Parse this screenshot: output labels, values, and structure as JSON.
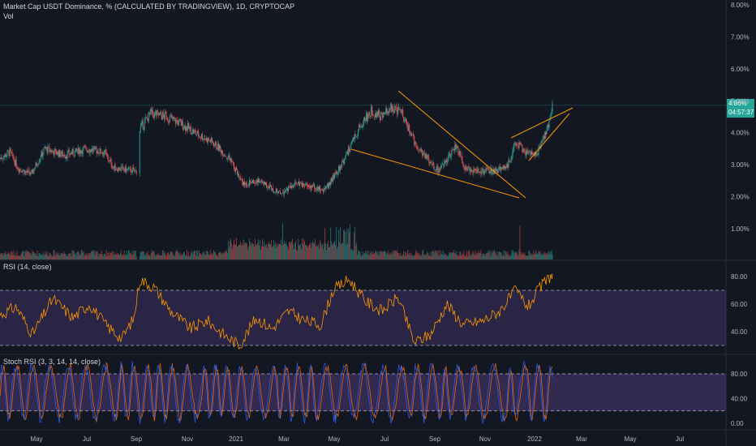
{
  "header": {
    "title": "Market Cap USDT Dominance, % (CALCULATED BY TRADINGVIEW), 1D, CRYPTOCAP",
    "vol_label": "Vol"
  },
  "rsi_pane": {
    "label": "RSI (14, close)"
  },
  "stoch_pane": {
    "label": "Stoch RSI (3, 3, 14, 14, close)"
  },
  "price_badge": {
    "value": "4.86%",
    "countdown": "04:57:37",
    "color": "#26a69a"
  },
  "colors": {
    "background": "#131722",
    "up": "#26a69a",
    "down": "#ef5350",
    "rsi_line": "#ff9800",
    "rsi_band": "#7e57c2",
    "stoch_k": "#2962ff",
    "stoch_d": "#ff6d00",
    "trendline": "#ff9800",
    "grid": "#1e222d",
    "axis_text": "#b2b5be"
  },
  "chart_data": {
    "type": "candlestick",
    "symbol": "USDT.D",
    "price_axis": {
      "ticks": [
        "8.00%",
        "7.00%",
        "6.00%",
        "5.00%",
        "4.00%",
        "3.00%",
        "2.00%",
        "1.00%"
      ],
      "range": [
        0,
        8
      ]
    },
    "rsi_axis": {
      "ticks": [
        "80.00",
        "60.00",
        "40.00"
      ],
      "range": [
        25,
        85
      ],
      "bands": [
        70,
        30
      ]
    },
    "stoch_axis": {
      "ticks": [
        "80.00",
        "40.00",
        "0.00"
      ],
      "range": [
        -5,
        105
      ],
      "bands": [
        80,
        20
      ]
    },
    "time_axis": {
      "ticks": [
        "May",
        "Jul",
        "Sep",
        "Nov",
        "2021",
        "Mar",
        "May",
        "Jul",
        "Sep",
        "Nov",
        "2022",
        "Mar",
        "May",
        "Jul"
      ]
    },
    "close_series": [
      {
        "t": 0,
        "v": 3.2
      },
      {
        "t": 12,
        "v": 3.4
      },
      {
        "t": 22,
        "v": 2.9
      },
      {
        "t": 38,
        "v": 2.7
      },
      {
        "t": 55,
        "v": 3.5
      },
      {
        "t": 80,
        "v": 3.3
      },
      {
        "t": 105,
        "v": 3.5
      },
      {
        "t": 128,
        "v": 3.4
      },
      {
        "t": 140,
        "v": 2.9
      },
      {
        "t": 168,
        "v": 2.8
      },
      {
        "t": 172,
        "v": 4.1
      },
      {
        "t": 185,
        "v": 4.6
      },
      {
        "t": 205,
        "v": 4.5
      },
      {
        "t": 222,
        "v": 4.3
      },
      {
        "t": 240,
        "v": 4.0
      },
      {
        "t": 262,
        "v": 3.7
      },
      {
        "t": 282,
        "v": 3.2
      },
      {
        "t": 300,
        "v": 2.4
      },
      {
        "t": 320,
        "v": 2.5
      },
      {
        "t": 345,
        "v": 2.1
      },
      {
        "t": 365,
        "v": 2.4
      },
      {
        "t": 385,
        "v": 2.3
      },
      {
        "t": 400,
        "v": 2.2
      },
      {
        "t": 418,
        "v": 2.9
      },
      {
        "t": 432,
        "v": 3.6
      },
      {
        "t": 445,
        "v": 4.3
      },
      {
        "t": 458,
        "v": 4.7
      },
      {
        "t": 470,
        "v": 4.5
      },
      {
        "t": 483,
        "v": 4.8
      },
      {
        "t": 495,
        "v": 4.6
      },
      {
        "t": 505,
        "v": 4.0
      },
      {
        "t": 515,
        "v": 3.5
      },
      {
        "t": 530,
        "v": 3.1
      },
      {
        "t": 540,
        "v": 2.8
      },
      {
        "t": 553,
        "v": 3.3
      },
      {
        "t": 562,
        "v": 3.6
      },
      {
        "t": 572,
        "v": 2.9
      },
      {
        "t": 590,
        "v": 2.8
      },
      {
        "t": 610,
        "v": 2.8
      },
      {
        "t": 625,
        "v": 3.0
      },
      {
        "t": 635,
        "v": 3.7
      },
      {
        "t": 650,
        "v": 3.3
      },
      {
        "t": 662,
        "v": 3.4
      },
      {
        "t": 672,
        "v": 4.0
      },
      {
        "t": 680,
        "v": 4.86
      }
    ],
    "rsi_series": [
      {
        "t": 0,
        "v": 52
      },
      {
        "t": 20,
        "v": 58
      },
      {
        "t": 40,
        "v": 38
      },
      {
        "t": 65,
        "v": 64
      },
      {
        "t": 90,
        "v": 50
      },
      {
        "t": 110,
        "v": 60
      },
      {
        "t": 130,
        "v": 45
      },
      {
        "t": 150,
        "v": 35
      },
      {
        "t": 165,
        "v": 50
      },
      {
        "t": 172,
        "v": 78
      },
      {
        "t": 190,
        "v": 72
      },
      {
        "t": 210,
        "v": 55
      },
      {
        "t": 235,
        "v": 42
      },
      {
        "t": 255,
        "v": 48
      },
      {
        "t": 275,
        "v": 38
      },
      {
        "t": 295,
        "v": 30
      },
      {
        "t": 315,
        "v": 50
      },
      {
        "t": 335,
        "v": 42
      },
      {
        "t": 355,
        "v": 55
      },
      {
        "t": 375,
        "v": 48
      },
      {
        "t": 395,
        "v": 45
      },
      {
        "t": 410,
        "v": 70
      },
      {
        "t": 430,
        "v": 78
      },
      {
        "t": 450,
        "v": 62
      },
      {
        "t": 470,
        "v": 55
      },
      {
        "t": 490,
        "v": 65
      },
      {
        "t": 510,
        "v": 32
      },
      {
        "t": 530,
        "v": 38
      },
      {
        "t": 550,
        "v": 60
      },
      {
        "t": 570,
        "v": 45
      },
      {
        "t": 595,
        "v": 48
      },
      {
        "t": 615,
        "v": 55
      },
      {
        "t": 635,
        "v": 70
      },
      {
        "t": 650,
        "v": 58
      },
      {
        "t": 665,
        "v": 72
      },
      {
        "t": 680,
        "v": 82
      }
    ],
    "rsi_last": 82,
    "stoch_last_k": 88,
    "stoch_last_d": 80
  }
}
